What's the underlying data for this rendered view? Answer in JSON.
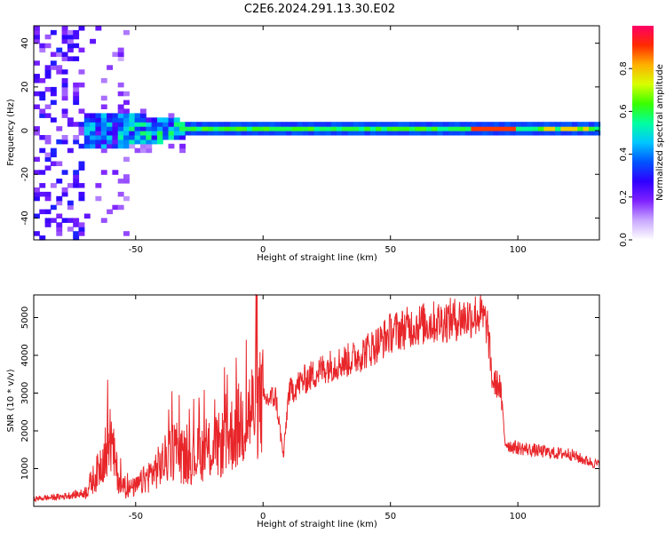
{
  "title": "C2E6.2024.291.13.30.E02",
  "chart_data": [
    {
      "type": "heatmap",
      "xlabel": "Height of straight line (km)",
      "ylabel": "Frequency (Hz)",
      "xlim": [
        -90,
        132
      ],
      "ylim": [
        -50,
        48
      ],
      "x_ticks": [
        -50,
        0,
        50,
        100
      ],
      "y_ticks": [
        -40,
        -20,
        0,
        20,
        40
      ],
      "colorbar": {
        "label": "Normalized spectral amplitude",
        "range": [
          0,
          1
        ],
        "ticks": [
          0.0,
          0.2,
          0.4,
          0.6,
          0.8
        ],
        "colormap": [
          "#ffffff",
          "#c9a8ff",
          "#7f22ff",
          "#2f00ff",
          "#0055ff",
          "#00c7ff",
          "#00ff9f",
          "#39ff00",
          "#d8ff00",
          "#ffb000",
          "#ff2a00",
          "#ff0066"
        ]
      },
      "description_bands": [
        {
          "x": [
            -90,
            -70
          ],
          "freq": [
            -50,
            48
          ],
          "amplitude": 0.2
        },
        {
          "x": [
            -70,
            -30
          ],
          "freq": [
            -8,
            8
          ],
          "amplitude": 0.45
        },
        {
          "x": [
            -30,
            132
          ],
          "freq": [
            -2,
            3
          ],
          "amplitude": 0.6
        },
        {
          "x": [
            85,
            100
          ],
          "freq": [
            0,
            2
          ],
          "amplitude": 0.9
        }
      ]
    },
    {
      "type": "line",
      "xlabel": "Height of straight line (km)",
      "ylabel": "SNR (10 * v/v)",
      "xlim": [
        -90,
        132
      ],
      "ylim": [
        0,
        5600
      ],
      "x_ticks": [
        -50,
        0,
        50,
        100
      ],
      "y_ticks": [
        1000,
        2000,
        3000,
        4000,
        5000
      ],
      "color": "#e8262a",
      "series": [
        {
          "x": [
            -90,
            -80,
            -70,
            -65,
            -62,
            -60,
            -57,
            -55,
            -50,
            -45,
            -40,
            -35,
            -30,
            -25,
            -20,
            -15,
            -10,
            -5,
            0,
            5,
            8,
            10,
            15,
            20,
            25,
            30,
            35,
            40,
            45,
            50,
            55,
            60,
            65,
            70,
            75,
            80,
            85,
            88,
            90,
            93,
            95,
            97,
            100,
            105,
            110,
            115,
            120,
            125,
            132
          ],
          "y": [
            200,
            250,
            350,
            900,
            1500,
            1800,
            800,
            450,
            500,
            800,
            1100,
            1500,
            1200,
            1400,
            1500,
            1700,
            2100,
            2500,
            2800,
            2900,
            1300,
            3000,
            3300,
            3500,
            3700,
            3800,
            3900,
            4100,
            4300,
            4600,
            4700,
            4800,
            4850,
            4900,
            4950,
            5000,
            5100,
            4800,
            3300,
            3200,
            1700,
            1600,
            1550,
            1500,
            1450,
            1400,
            1400,
            1250,
            1100
          ]
        }
      ]
    }
  ]
}
